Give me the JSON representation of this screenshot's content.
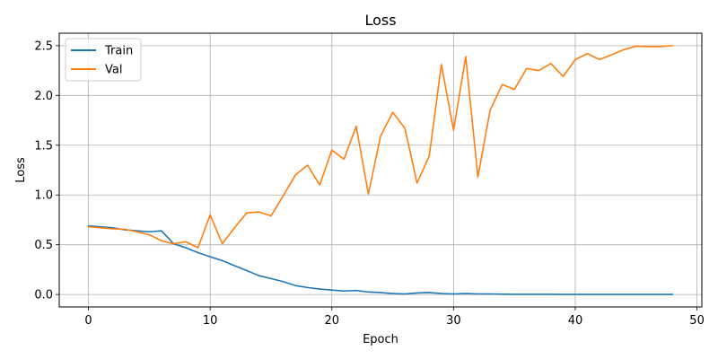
{
  "chart_data": {
    "type": "line",
    "title": "Loss",
    "xlabel": "Epoch",
    "ylabel": "Loss",
    "xlim": [
      -2.4,
      50.4
    ],
    "ylim": [
      -0.125,
      2.625
    ],
    "xticks": [
      0,
      10,
      20,
      30,
      40,
      50
    ],
    "yticks": [
      0.0,
      0.5,
      1.0,
      1.5,
      2.0,
      2.5
    ],
    "xtick_labels": [
      "0",
      "10",
      "20",
      "30",
      "40",
      "50"
    ],
    "ytick_labels": [
      "0.0",
      "0.5",
      "1.0",
      "1.5",
      "2.0",
      "2.5"
    ],
    "grid": true,
    "legend_position": "top-left",
    "x": [
      0,
      1,
      2,
      3,
      4,
      5,
      6,
      7,
      8,
      9,
      10,
      11,
      12,
      13,
      14,
      15,
      16,
      17,
      18,
      19,
      20,
      21,
      22,
      23,
      24,
      25,
      26,
      27,
      28,
      29,
      30,
      31,
      32,
      33,
      34,
      35,
      36,
      37,
      38,
      39,
      40,
      41,
      42,
      43,
      44,
      45,
      46,
      47,
      48
    ],
    "series": [
      {
        "name": "Train",
        "color": "#1f77b4",
        "values": [
          0.69,
          0.68,
          0.67,
          0.65,
          0.64,
          0.63,
          0.64,
          0.51,
          0.47,
          0.42,
          0.38,
          0.34,
          0.29,
          0.24,
          0.19,
          0.16,
          0.13,
          0.09,
          0.07,
          0.055,
          0.045,
          0.035,
          0.04,
          0.025,
          0.02,
          0.01,
          0.005,
          0.015,
          0.02,
          0.01,
          0.005,
          0.01,
          0.005,
          0.005,
          0.003,
          0.002,
          0.002,
          0.002,
          0.002,
          0.001,
          0.001,
          0.001,
          0.001,
          0.001,
          0.001,
          0.001,
          0.001,
          0.001,
          0.001
        ]
      },
      {
        "name": "Val",
        "color": "#ff7f0e",
        "values": [
          0.68,
          0.67,
          0.66,
          0.655,
          0.63,
          0.6,
          0.54,
          0.51,
          0.53,
          0.47,
          0.8,
          0.51,
          0.67,
          0.82,
          0.83,
          0.79,
          0.99,
          1.2,
          1.3,
          1.1,
          1.45,
          1.36,
          1.69,
          1.01,
          1.59,
          1.83,
          1.67,
          1.12,
          1.39,
          2.31,
          1.65,
          2.39,
          1.18,
          1.85,
          2.11,
          2.06,
          2.27,
          2.25,
          2.32,
          2.19,
          2.36,
          2.42,
          2.36,
          2.41,
          2.46,
          2.495,
          2.49,
          2.49,
          2.5
        ]
      }
    ]
  }
}
